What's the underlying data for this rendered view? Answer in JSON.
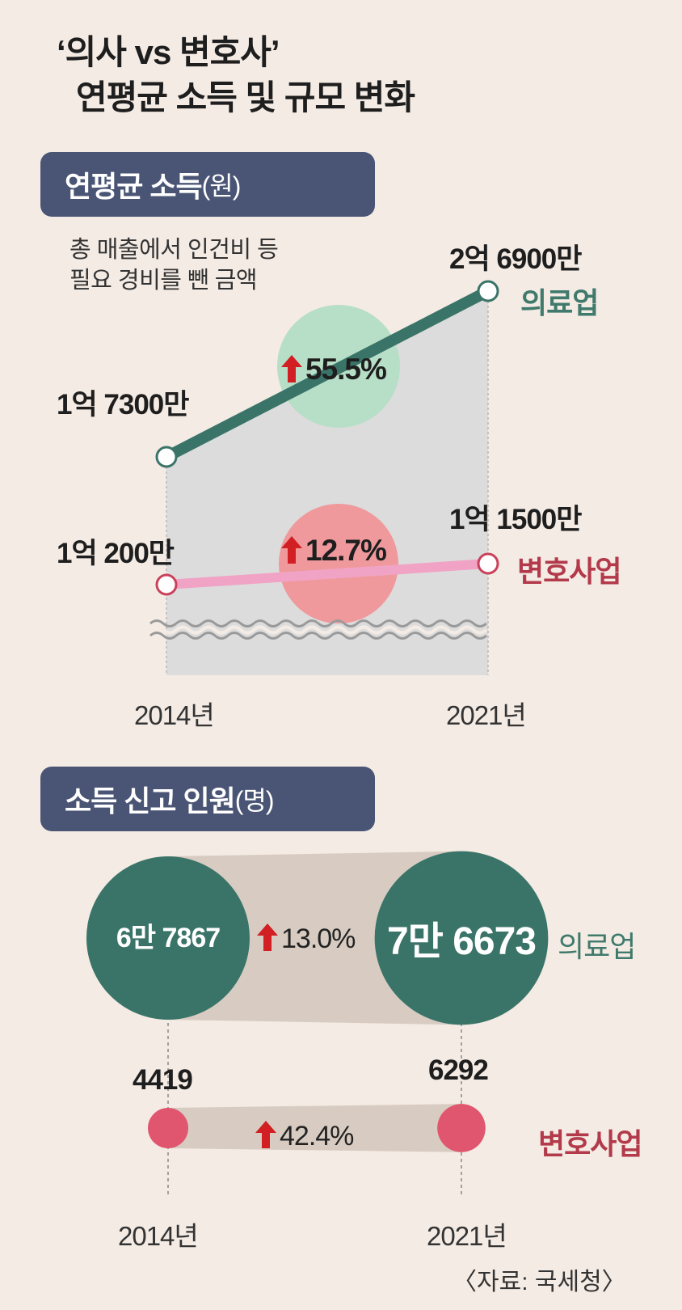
{
  "title": {
    "line1": "‘의사 vs 변호사’",
    "line2": "연평균 소득 및 규모 변화"
  },
  "section1": {
    "label": "연평균 소득",
    "unit": "(원)",
    "note_line1": "총 매출에서 인건비 등",
    "note_line2": "필요 경비를 뺀 금액"
  },
  "section2": {
    "label": "소득 신고 인원",
    "unit": "(명)"
  },
  "colors": {
    "medical": "#3a7468",
    "legal": "#f0a3c4",
    "legal_dot": "#e0566e",
    "label_medical": "#3f7a6c",
    "label_legal": "#b23a4a",
    "arrow": "#d11f24",
    "pill": "#4a5575"
  },
  "source": "〈자료: 국세청〉",
  "chart_data": [
    {
      "type": "line",
      "title": "연평균 소득",
      "unit": "원",
      "x": [
        "2014년",
        "2021년"
      ],
      "series": [
        {
          "name": "의료업",
          "values": [
            173000000,
            269000000
          ],
          "labels": [
            "1억 7300만",
            "2억 6900만"
          ],
          "change": "55.5%"
        },
        {
          "name": "변호사업",
          "values": [
            102000000,
            115000000
          ],
          "labels": [
            "1억 200만",
            "1억 1500만"
          ],
          "change": "12.7%"
        }
      ],
      "axis_break": true
    },
    {
      "type": "bubble",
      "title": "소득 신고 인원",
      "unit": "명",
      "x": [
        "2014년",
        "2021년"
      ],
      "series": [
        {
          "name": "의료업",
          "values": [
            67867,
            76673
          ],
          "labels": [
            "6만 7867",
            "7만 6673"
          ],
          "change": "13.0%"
        },
        {
          "name": "변호사업",
          "values": [
            4419,
            6292
          ],
          "labels": [
            "4419",
            "6292"
          ],
          "change": "42.4%"
        }
      ]
    }
  ]
}
